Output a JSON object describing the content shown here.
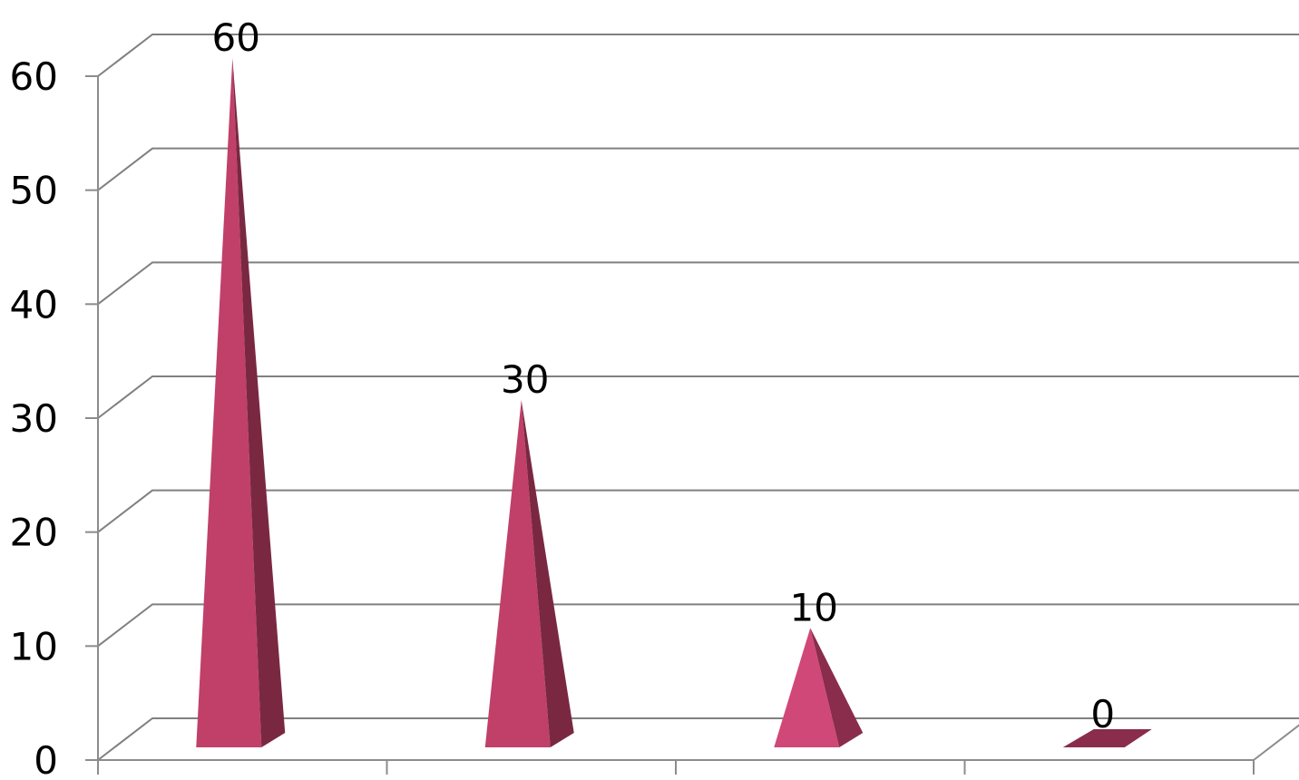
{
  "chart_data": {
    "type": "bar",
    "style": "3d-pyramid",
    "categories": [
      "",
      "",
      "",
      ""
    ],
    "values": [
      60,
      30,
      10,
      0
    ],
    "data_labels": [
      "60",
      "30",
      "10",
      "0"
    ],
    "ylim": [
      0,
      60
    ],
    "y_ticks": [
      0,
      10,
      20,
      30,
      40,
      50,
      60
    ],
    "y_tick_labels": [
      "0",
      "10",
      "20",
      "30",
      "40",
      "50",
      "60"
    ],
    "grid": true,
    "legend": "none",
    "title": "",
    "xlabel": "",
    "ylabel": "",
    "colors": {
      "pyramid_front": [
        "#C0406A",
        "#C0406A",
        "#D04878",
        "#B03560"
      ],
      "pyramid_side": [
        "#7A2842",
        "#7A2842",
        "#8A2C4C",
        "#8A2C4C"
      ],
      "grid": "#808080",
      "axis": "#8C8C8C"
    }
  }
}
